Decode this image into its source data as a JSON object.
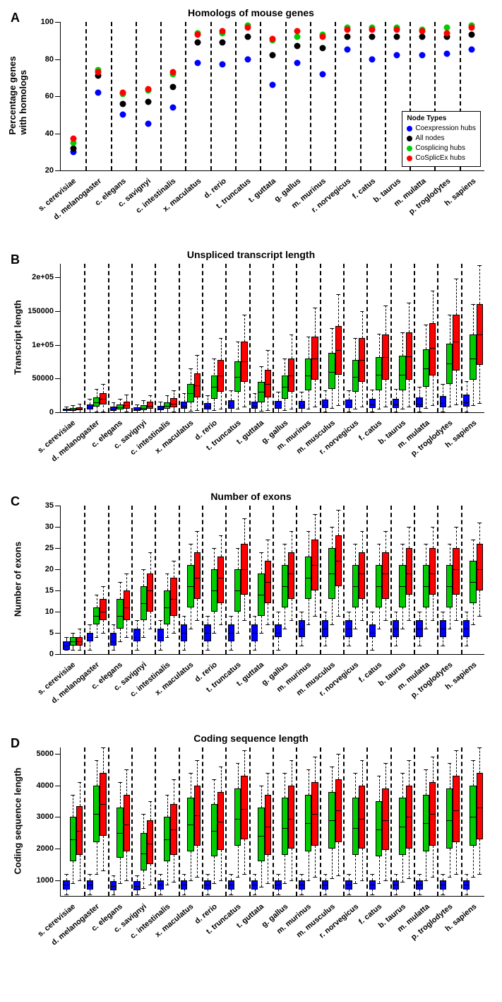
{
  "colors": {
    "blue": "#0000ff",
    "black": "#000000",
    "green": "#00cc00",
    "red": "#ff0000"
  },
  "species": [
    "s. cerevisiae",
    "d. melanogaster",
    "c. elegans",
    "c. savignyi",
    "c. intestinalis",
    "x. maculatus",
    "d. rerio",
    "t. truncatus",
    "t. guttata",
    "g. gallus",
    "m. murinus",
    "m. musculus",
    "r. norvegicus",
    "f. catus",
    "b. taurus",
    "m. mulatta",
    "p. troglodytes",
    "h. sapiens"
  ],
  "speciesA": [
    "s. cerevisiae",
    "d. melanogaster",
    "c. elegans",
    "c. savignyi",
    "c. intestinalis",
    "x. maculatus",
    "d. rerio",
    "t. truncatus",
    "t. guttata",
    "g. gallus",
    "m. murinus",
    "r. norvegicus",
    "f. catus",
    "b. taurus",
    "m. mulatta",
    "p. troglodytes",
    "h. sapiens"
  ],
  "panelA": {
    "title": "Homologs of mouse genes",
    "ylabel": "Percentage genes\nwith homologs",
    "ylim": [
      20,
      100
    ],
    "yticks": [
      20,
      40,
      60,
      80,
      100
    ],
    "legend": {
      "title": "Node Types",
      "items": [
        {
          "label": "Coexpression hubs",
          "color": "#0000ff"
        },
        {
          "label": "All nodes",
          "color": "#000000"
        },
        {
          "label": "Cosplicing hubs",
          "color": "#00cc00"
        },
        {
          "label": "CoSplicEx hubs",
          "color": "#ff0000"
        }
      ]
    },
    "series": {
      "blue": [
        30,
        62,
        50,
        45,
        54,
        78,
        77,
        80,
        66,
        78,
        72,
        85,
        80,
        82,
        82,
        83,
        85
      ],
      "black": [
        32,
        71,
        56,
        57,
        65,
        89,
        89,
        92,
        82,
        87,
        86,
        92,
        92,
        92,
        92,
        92,
        93
      ],
      "green": [
        35,
        74,
        61,
        63,
        72,
        94,
        94,
        98,
        90,
        92,
        93,
        97,
        97,
        97,
        96,
        97,
        98
      ],
      "red": [
        37,
        73,
        62,
        64,
        73,
        93,
        95,
        97,
        91,
        95,
        92,
        96,
        96,
        96,
        95,
        94,
        97
      ]
    }
  },
  "panelB": {
    "title": "Unspliced transcript length",
    "ylabel": "Transcript length",
    "ylim": [
      0,
      220000
    ],
    "yticks": [
      0,
      50000,
      100000,
      150000,
      200000
    ],
    "yticklabels": [
      "0",
      "50000",
      "1e+05",
      "150000",
      "2e+05"
    ],
    "boxes": {
      "blue": [
        [
          100,
          1800,
          3000,
          5000,
          8000
        ],
        [
          500,
          4000,
          7000,
          12000,
          20000
        ],
        [
          200,
          2500,
          4500,
          8000,
          15000
        ],
        [
          200,
          2000,
          3800,
          7000,
          12000
        ],
        [
          300,
          3000,
          5500,
          9000,
          16000
        ],
        [
          500,
          5000,
          9000,
          16000,
          28000
        ],
        [
          400,
          4500,
          8000,
          14000,
          25000
        ],
        [
          500,
          5500,
          10000,
          18000,
          32000
        ],
        [
          500,
          5000,
          9000,
          16000,
          28000
        ],
        [
          500,
          5500,
          10000,
          17000,
          30000
        ],
        [
          500,
          5500,
          10000,
          17000,
          30000
        ],
        [
          600,
          6000,
          11000,
          19000,
          33000
        ],
        [
          600,
          6000,
          11000,
          19000,
          33000
        ],
        [
          650,
          6500,
          12000,
          20000,
          34000
        ],
        [
          650,
          6500,
          12000,
          20000,
          35000
        ],
        [
          700,
          7000,
          13000,
          22000,
          38000
        ],
        [
          700,
          7500,
          14000,
          24000,
          42000
        ],
        [
          800,
          8000,
          15000,
          26000,
          46000
        ]
      ],
      "green": [
        [
          150,
          2200,
          3800,
          6200,
          10000
        ],
        [
          1000,
          8000,
          15000,
          22000,
          35000
        ],
        [
          400,
          4000,
          7500,
          12000,
          20000
        ],
        [
          300,
          3500,
          6500,
          11000,
          18000
        ],
        [
          500,
          5000,
          9000,
          15000,
          25000
        ],
        [
          2000,
          15000,
          28000,
          42000,
          65000
        ],
        [
          3000,
          20000,
          38000,
          55000,
          80000
        ],
        [
          5000,
          30000,
          52000,
          75000,
          105000
        ],
        [
          2000,
          15000,
          30000,
          45000,
          68000
        ],
        [
          3000,
          20000,
          38000,
          55000,
          80000
        ],
        [
          5000,
          32000,
          55000,
          80000,
          112000
        ],
        [
          6000,
          35000,
          60000,
          88000,
          125000
        ],
        [
          5000,
          30000,
          52000,
          78000,
          110000
        ],
        [
          5500,
          32000,
          56000,
          82000,
          116000
        ],
        [
          5500,
          32000,
          56000,
          84000,
          118000
        ],
        [
          6500,
          38000,
          65000,
          93000,
          130000
        ],
        [
          8000,
          42000,
          72000,
          102000,
          145000
        ],
        [
          10000,
          48000,
          80000,
          115000,
          160000
        ]
      ],
      "red": [
        [
          200,
          2800,
          4800,
          7800,
          12500
        ],
        [
          1500,
          11000,
          20000,
          28000,
          42000
        ],
        [
          600,
          5500,
          10000,
          16000,
          26000
        ],
        [
          500,
          5000,
          9500,
          15500,
          25000
        ],
        [
          800,
          7000,
          13000,
          21000,
          33000
        ],
        [
          3000,
          22000,
          40000,
          58000,
          85000
        ],
        [
          5000,
          30000,
          55000,
          78000,
          110000
        ],
        [
          8000,
          45000,
          75000,
          105000,
          145000
        ],
        [
          3500,
          22000,
          42000,
          63000,
          92000
        ],
        [
          5000,
          30000,
          55000,
          80000,
          115000
        ],
        [
          8000,
          48000,
          80000,
          112000,
          155000
        ],
        [
          10000,
          55000,
          92000,
          128000,
          175000
        ],
        [
          8000,
          45000,
          78000,
          110000,
          150000
        ],
        [
          8500,
          48000,
          82000,
          115000,
          158000
        ],
        [
          8500,
          48000,
          83000,
          118000,
          162000
        ],
        [
          10000,
          55000,
          95000,
          132000,
          180000
        ],
        [
          12000,
          62000,
          105000,
          145000,
          198000
        ],
        [
          14000,
          70000,
          115000,
          160000,
          218000
        ]
      ]
    }
  },
  "panelC": {
    "title": "Number of exons",
    "ylabel": "Number of exons",
    "ylim": [
      0,
      35
    ],
    "yticks": [
      0,
      5,
      10,
      15,
      20,
      25,
      30,
      35
    ],
    "boxes": {
      "blue": [
        [
          1,
          1,
          2,
          3,
          4
        ],
        [
          1,
          3,
          4,
          5,
          7
        ],
        [
          1,
          2,
          3,
          5,
          7
        ],
        [
          1,
          3,
          4,
          6,
          8
        ],
        [
          1,
          3,
          4,
          6,
          8
        ],
        [
          1,
          3,
          5,
          7,
          9
        ],
        [
          1,
          3,
          5,
          7,
          9
        ],
        [
          1,
          3,
          5,
          7,
          9
        ],
        [
          1,
          3,
          5,
          7,
          9
        ],
        [
          1,
          4,
          5,
          7,
          10
        ],
        [
          2,
          4,
          6,
          8,
          10
        ],
        [
          2,
          4,
          6,
          8,
          10
        ],
        [
          2,
          4,
          6,
          8,
          10
        ],
        [
          1,
          4,
          5,
          7,
          10
        ],
        [
          2,
          4,
          6,
          8,
          10
        ],
        [
          2,
          4,
          6,
          8,
          10
        ],
        [
          2,
          4,
          6,
          8,
          10
        ],
        [
          2,
          4,
          6,
          8,
          10
        ]
      ],
      "green": [
        [
          1,
          2,
          3,
          4,
          5
        ],
        [
          4,
          7,
          9,
          11,
          14
        ],
        [
          3,
          6,
          9,
          13,
          17
        ],
        [
          4,
          8,
          12,
          16,
          20
        ],
        [
          4,
          7,
          11,
          15,
          19
        ],
        [
          6,
          11,
          16,
          21,
          26
        ],
        [
          5,
          10,
          15,
          20,
          25
        ],
        [
          5,
          10,
          15,
          20,
          25
        ],
        [
          5,
          9,
          14,
          19,
          24
        ],
        [
          6,
          11,
          16,
          21,
          26
        ],
        [
          7,
          13,
          18,
          23,
          29
        ],
        [
          7,
          13,
          19,
          25,
          30
        ],
        [
          6,
          11,
          16,
          21,
          26
        ],
        [
          6,
          11,
          16,
          21,
          26
        ],
        [
          6,
          11,
          16,
          21,
          26
        ],
        [
          6,
          11,
          16,
          21,
          26
        ],
        [
          6,
          11,
          16,
          21,
          26
        ],
        [
          7,
          12,
          17,
          22,
          27
        ]
      ],
      "red": [
        [
          1,
          2,
          3,
          4,
          6
        ],
        [
          5,
          8,
          10,
          13,
          16
        ],
        [
          4,
          8,
          11,
          15,
          19
        ],
        [
          6,
          10,
          15,
          19,
          24
        ],
        [
          5,
          9,
          13,
          18,
          22
        ],
        [
          8,
          13,
          18,
          24,
          29
        ],
        [
          7,
          12,
          18,
          23,
          28
        ],
        [
          8,
          14,
          20,
          26,
          32
        ],
        [
          7,
          12,
          17,
          22,
          27
        ],
        [
          8,
          13,
          19,
          24,
          29
        ],
        [
          9,
          15,
          21,
          27,
          33
        ],
        [
          9,
          16,
          22,
          28,
          34
        ],
        [
          8,
          13,
          19,
          24,
          29
        ],
        [
          8,
          13,
          19,
          24,
          29
        ],
        [
          8,
          14,
          19,
          25,
          30
        ],
        [
          8,
          14,
          19,
          25,
          30
        ],
        [
          8,
          14,
          20,
          25,
          30
        ],
        [
          9,
          15,
          20,
          26,
          31
        ]
      ]
    }
  },
  "panelD": {
    "title": "Coding sequence length",
    "ylabel": "Coding sequence length",
    "ylim": [
      500,
      5200
    ],
    "yticks": [
      1000,
      2000,
      3000,
      4000,
      5000
    ],
    "boxes": {
      "blue": [
        [
          550,
          700,
          850,
          1000,
          1200
        ],
        [
          550,
          700,
          850,
          1000,
          1200
        ],
        [
          550,
          680,
          820,
          980,
          1150
        ],
        [
          550,
          680,
          820,
          980,
          1150
        ],
        [
          550,
          700,
          850,
          1000,
          1200
        ],
        [
          550,
          700,
          850,
          1000,
          1200
        ],
        [
          550,
          700,
          850,
          1000,
          1200
        ],
        [
          550,
          700,
          850,
          1000,
          1200
        ],
        [
          550,
          700,
          850,
          1000,
          1200
        ],
        [
          550,
          700,
          850,
          1000,
          1200
        ],
        [
          550,
          700,
          850,
          1000,
          1200
        ],
        [
          550,
          700,
          850,
          1000,
          1200
        ],
        [
          550,
          700,
          850,
          1000,
          1200
        ],
        [
          550,
          700,
          850,
          1000,
          1200
        ],
        [
          550,
          700,
          850,
          1000,
          1200
        ],
        [
          550,
          700,
          850,
          1000,
          1200
        ],
        [
          550,
          700,
          850,
          1000,
          1200
        ],
        [
          550,
          700,
          850,
          1000,
          1200
        ]
      ],
      "green": [
        [
          900,
          1600,
          2300,
          3000,
          3700
        ],
        [
          1200,
          2200,
          3100,
          4000,
          4800
        ],
        [
          900,
          1700,
          2500,
          3300,
          4100
        ],
        [
          750,
          1300,
          1850,
          2500,
          3100
        ],
        [
          850,
          1600,
          2300,
          3000,
          3700
        ],
        [
          1000,
          1900,
          2750,
          3600,
          4400
        ],
        [
          900,
          1750,
          2550,
          3400,
          4200
        ],
        [
          1100,
          2100,
          2950,
          3900,
          4700
        ],
        [
          800,
          1600,
          2400,
          3300,
          4000
        ],
        [
          900,
          1800,
          2650,
          3600,
          4400
        ],
        [
          1000,
          1900,
          2800,
          3700,
          4500
        ],
        [
          1050,
          2000,
          2900,
          3800,
          4600
        ],
        [
          900,
          1800,
          2650,
          3600,
          4400
        ],
        [
          900,
          1750,
          2600,
          3500,
          4300
        ],
        [
          950,
          1800,
          2700,
          3600,
          4400
        ],
        [
          1000,
          1900,
          2800,
          3700,
          4500
        ],
        [
          1100,
          2000,
          2900,
          3900,
          4700
        ],
        [
          1100,
          2100,
          3000,
          4000,
          4800
        ]
      ],
      "red": [
        [
          1000,
          1800,
          2550,
          3350,
          4100
        ],
        [
          1300,
          2400,
          3400,
          4400,
          5200
        ],
        [
          1000,
          1900,
          2750,
          3700,
          4500
        ],
        [
          850,
          1500,
          2150,
          2900,
          3500
        ],
        [
          950,
          1800,
          2600,
          3400,
          4200
        ],
        [
          1100,
          2100,
          3050,
          4000,
          4800
        ],
        [
          1000,
          1950,
          2850,
          3800,
          4600
        ],
        [
          1200,
          2300,
          3250,
          4300,
          5100
        ],
        [
          900,
          1800,
          2700,
          3700,
          4400
        ],
        [
          1000,
          2000,
          2950,
          4000,
          4800
        ],
        [
          1100,
          2100,
          3100,
          4100,
          4900
        ],
        [
          1150,
          2200,
          3200,
          4200,
          5000
        ],
        [
          1000,
          2000,
          2950,
          4000,
          4800
        ],
        [
          1000,
          1950,
          2900,
          3900,
          4700
        ],
        [
          1050,
          2000,
          3000,
          4000,
          4800
        ],
        [
          1100,
          2100,
          3100,
          4100,
          4900
        ],
        [
          1200,
          2200,
          3200,
          4300,
          5100
        ],
        [
          1200,
          2300,
          3300,
          4400,
          5200
        ]
      ]
    }
  }
}
